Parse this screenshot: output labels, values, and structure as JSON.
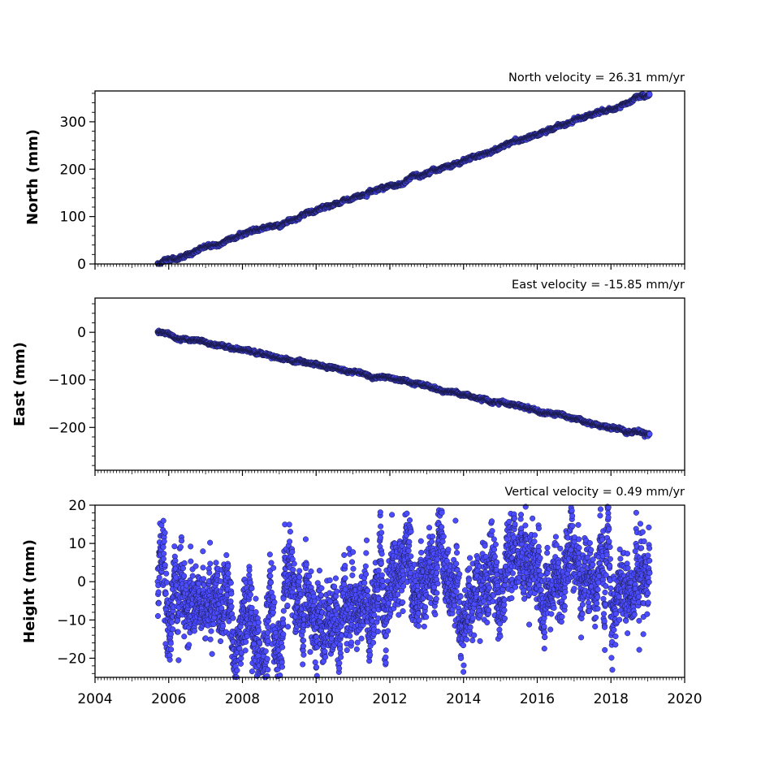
{
  "chart_data": [
    {
      "type": "scatter",
      "title": "North velocity = 26.31 mm/yr",
      "ylabel": "North (mm)",
      "xlabel": "",
      "xlim": [
        2004,
        2020
      ],
      "ylim": [
        0,
        365
      ],
      "yticks": [
        0,
        100,
        200,
        300
      ],
      "y_minor_step": 20,
      "x_range": [
        2005.7,
        2019.05
      ],
      "model": {
        "start": 0,
        "rate": 26.31,
        "noise": 1.5
      },
      "series": [
        {
          "x": [
            2005.7,
            2008,
            2010,
            2012,
            2014,
            2016,
            2019.05
          ],
          "values": [
            0,
            60,
            112,
            165,
            218,
            273,
            358
          ]
        }
      ],
      "color": "#4b4bff",
      "edgecolor": "#1a1a4a"
    },
    {
      "type": "scatter",
      "title": "East velocity = -15.85 mm/yr",
      "ylabel": "East (mm)",
      "xlabel": "",
      "xlim": [
        2004,
        2020
      ],
      "ylim": [
        -290,
        72
      ],
      "yticks": [
        0,
        -100,
        -200
      ],
      "y_minor_step": 20,
      "x_range": [
        2005.7,
        2019.05
      ],
      "model": {
        "start": 0,
        "rate": -15.85,
        "noise": 1.5
      },
      "series": [
        {
          "x": [
            2005.7,
            2008,
            2010,
            2012,
            2014,
            2015,
            2017,
            2019.05
          ],
          "values": [
            0,
            -37,
            -70,
            -97,
            -130,
            -152,
            -182,
            -218
          ]
        }
      ],
      "color": "#4b4bff",
      "edgecolor": "#1a1a4a"
    },
    {
      "type": "scatter",
      "title": "Vertical velocity = 0.49 mm/yr",
      "ylabel": "Height (mm)",
      "xlabel": "",
      "xlim": [
        2004,
        2020
      ],
      "ylim": [
        -25,
        20
      ],
      "yticks": [
        20,
        10,
        0,
        -10,
        -20
      ],
      "y_minor_step": 2,
      "x_range": [
        2005.7,
        2019.05
      ],
      "model": {
        "start": -5,
        "rate": 0.49,
        "noise": 5
      },
      "series": [
        {
          "x": [
            2005.7,
            2009,
            2012,
            2014,
            2016,
            2019
          ],
          "values": [
            -4,
            -12,
            -5,
            0,
            2,
            0
          ]
        }
      ],
      "color": "#4b4bff",
      "edgecolor": "#1a1a4a"
    }
  ],
  "xticks": [
    "2004",
    "2006",
    "2008",
    "2010",
    "2012",
    "2014",
    "2016",
    "2018",
    "2020"
  ]
}
